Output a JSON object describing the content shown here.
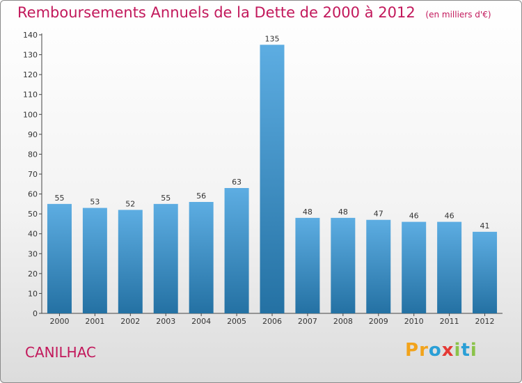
{
  "header": {
    "title": "Remboursements Annuels de la Dette de 2000 à 2012",
    "unit": "(en milliers d'€)"
  },
  "footer": {
    "town": "CANILHAC",
    "logo": [
      "P",
      "r",
      "o",
      "x",
      "i",
      "t",
      "i"
    ]
  },
  "colors": {
    "bar_top": "#5dade2",
    "bar_bottom": "#2471a3",
    "title": "#c2185b"
  },
  "chart_data": {
    "type": "bar",
    "title": "Remboursements Annuels de la Dette de 2000 à 2012",
    "categories": [
      "2000",
      "2001",
      "2002",
      "2003",
      "2004",
      "2005",
      "2006",
      "2007",
      "2008",
      "2009",
      "2010",
      "2011",
      "2012"
    ],
    "values": [
      55,
      53,
      52,
      55,
      56,
      63,
      135,
      48,
      48,
      47,
      46,
      46,
      41
    ],
    "ylim": [
      0,
      140
    ],
    "yticks": [
      0,
      10,
      20,
      30,
      40,
      50,
      60,
      70,
      80,
      90,
      100,
      110,
      120,
      130,
      140
    ],
    "grid": false
  }
}
